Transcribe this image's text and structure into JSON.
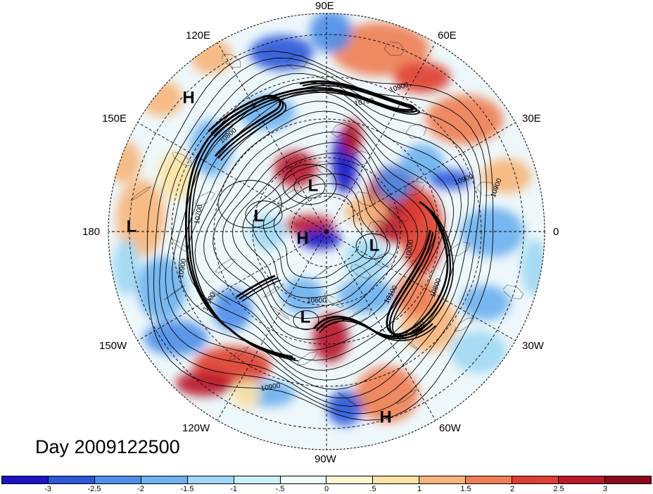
{
  "title": "Day 2009122500",
  "map": {
    "projection": "north-polar-stereographic",
    "longitude_labels": [
      "90E",
      "60E",
      "30E",
      "0",
      "30W",
      "60W",
      "90W",
      "120W",
      "150W",
      "180",
      "150E",
      "120E"
    ],
    "pressure_systems": [
      {
        "type": "H",
        "region": "northwest Pacific"
      },
      {
        "type": "L",
        "region": "central Pacific"
      },
      {
        "type": "L",
        "region": "north Pacific"
      },
      {
        "type": "L",
        "region": "eastern Siberia"
      },
      {
        "type": "H",
        "region": "Arctic"
      },
      {
        "type": "L",
        "region": "Greenland"
      },
      {
        "type": "L",
        "region": "Canada"
      },
      {
        "type": "H",
        "region": "South America"
      }
    ],
    "contour_labels": [
      "10900",
      "10700",
      "10800",
      "10900",
      "10900",
      "10700",
      "10000",
      "10100",
      "10800",
      "10900",
      "10600",
      "10900",
      "10900",
      "10800"
    ],
    "contour_color": "#000000"
  },
  "colorbar": {
    "tick_labels": [
      "-3",
      "-2.5",
      "-2",
      "-1.5",
      "-1",
      "-.5",
      "0",
      ".5",
      "1",
      "1.5",
      "2",
      "2.5",
      "3"
    ],
    "colors": [
      "#1a14c4",
      "#2d58d9",
      "#4e8ee8",
      "#6eb1ef",
      "#a0d8f2",
      "#ccf0f8",
      "#eefafc",
      "#fdf6d2",
      "#fbe3a4",
      "#f6b57c",
      "#ee7f55",
      "#dd3f32",
      "#b8182a",
      "#8c0a1c"
    ]
  }
}
